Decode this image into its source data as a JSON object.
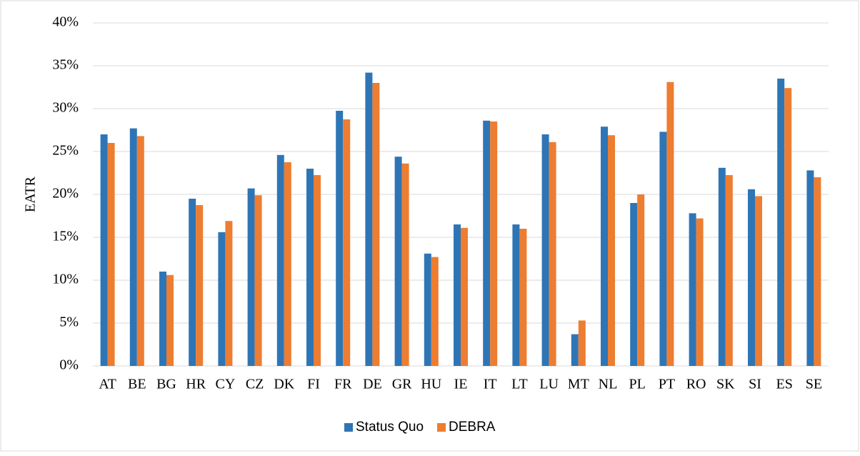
{
  "chart_data": {
    "type": "bar",
    "y_label": "EATR",
    "categories": [
      "AT",
      "BE",
      "BG",
      "HR",
      "CY",
      "CZ",
      "DK",
      "FI",
      "FR",
      "DE",
      "GR",
      "HU",
      "IE",
      "IT",
      "LT",
      "LU",
      "MT",
      "NL",
      "PL",
      "PT",
      "RO",
      "SK",
      "SI",
      "ES",
      "SE"
    ],
    "series": [
      {
        "name": "Status Quo",
        "color": "#2e75b6",
        "values": [
          27.0,
          27.7,
          11.0,
          19.5,
          15.6,
          20.7,
          24.6,
          23.0,
          29.75,
          34.2,
          24.4,
          13.1,
          16.5,
          28.6,
          16.5,
          27.0,
          3.7,
          27.9,
          19.0,
          27.3,
          17.8,
          23.1,
          20.6,
          33.5,
          22.8
        ]
      },
      {
        "name": "DEBRA",
        "color": "#ed7d31",
        "values": [
          26.0,
          26.8,
          10.6,
          18.75,
          16.9,
          19.9,
          23.75,
          22.25,
          28.75,
          33.0,
          23.6,
          12.7,
          16.1,
          28.5,
          16.0,
          26.1,
          5.3,
          26.9,
          20.0,
          33.1,
          17.2,
          22.25,
          19.8,
          32.4,
          22.0
        ]
      }
    ],
    "ylim": [
      0,
      40
    ],
    "yticks": [
      {
        "value": 0,
        "label": "0%"
      },
      {
        "value": 5,
        "label": "5%"
      },
      {
        "value": 10,
        "label": "10%"
      },
      {
        "value": 15,
        "label": "15%"
      },
      {
        "value": 20,
        "label": "20%"
      },
      {
        "value": 25,
        "label": "25%"
      },
      {
        "value": 30,
        "label": "30%"
      },
      {
        "value": 35,
        "label": "35%"
      },
      {
        "value": 40,
        "label": "40%"
      }
    ],
    "grid": true,
    "legend": "bottom"
  }
}
